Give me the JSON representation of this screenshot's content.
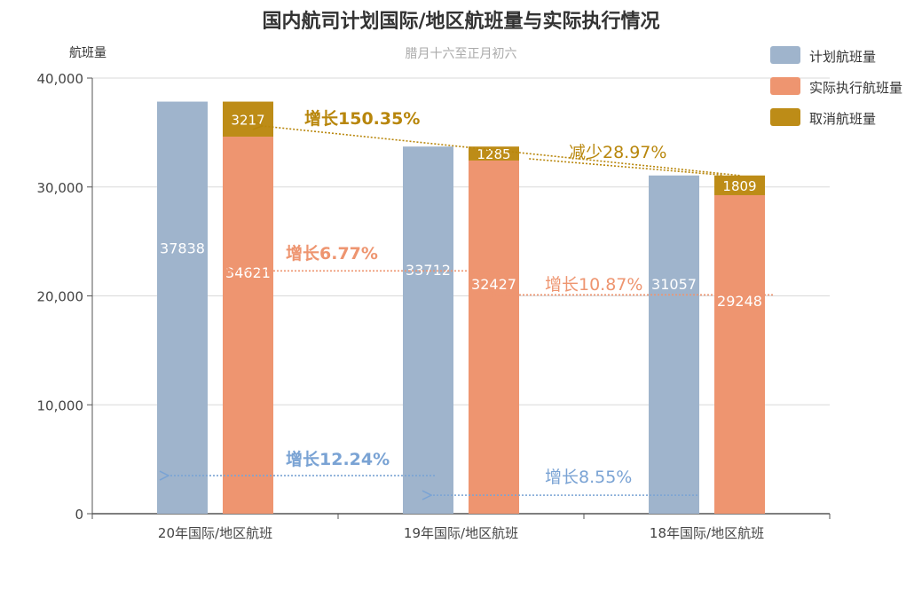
{
  "title": "国内航司计划国际/地区航班量与实际执行情况",
  "subtitle": "腊月十六至正月初六",
  "colors": {
    "planned": "#9fb4cc",
    "executed": "#ee9570",
    "cancelled": "#bd8c17",
    "arrow_blue": "#7aa3d4",
    "arrow_orange": "#ee9570",
    "arrow_gold": "#b8860b"
  },
  "chart_data": {
    "type": "bar",
    "title": "国内航司计划国际/地区航班量与实际执行情况",
    "subtitle": "腊月十六至正月初六",
    "ylabel": "航班量",
    "xlabel": "",
    "ylim": [
      0,
      40000
    ],
    "yticks": [
      "0",
      "10,000",
      "20,000",
      "30,000",
      "40,000"
    ],
    "categories": [
      "20年国际/地区航班",
      "19年国际/地区航班",
      "18年国际/地区航班"
    ],
    "series": [
      {
        "name": "计划航班量",
        "values": [
          37838,
          33712,
          31057
        ],
        "labels": [
          "37838",
          "33712",
          "31057"
        ]
      },
      {
        "name": "实际执行航班量",
        "values": [
          34621,
          32427,
          29248
        ],
        "labels": [
          "34621",
          "32427",
          "29248"
        ]
      },
      {
        "name": "取消航班量",
        "values": [
          3217,
          1285,
          1809
        ],
        "labels": [
          "3217",
          "1285",
          "1809"
        ],
        "stacked_on": "实际执行航班量"
      }
    ],
    "legend_position": "top-right",
    "grid": true,
    "annotations": [
      {
        "text": "增长150.35%",
        "color": "gold"
      },
      {
        "text": "减少28.97%",
        "color": "gold"
      },
      {
        "text": "增长6.77%",
        "color": "orange"
      },
      {
        "text": "增长10.87%",
        "color": "orange"
      },
      {
        "text": "增长12.24%",
        "color": "blue"
      },
      {
        "text": "增长8.55%",
        "color": "blue"
      }
    ]
  }
}
